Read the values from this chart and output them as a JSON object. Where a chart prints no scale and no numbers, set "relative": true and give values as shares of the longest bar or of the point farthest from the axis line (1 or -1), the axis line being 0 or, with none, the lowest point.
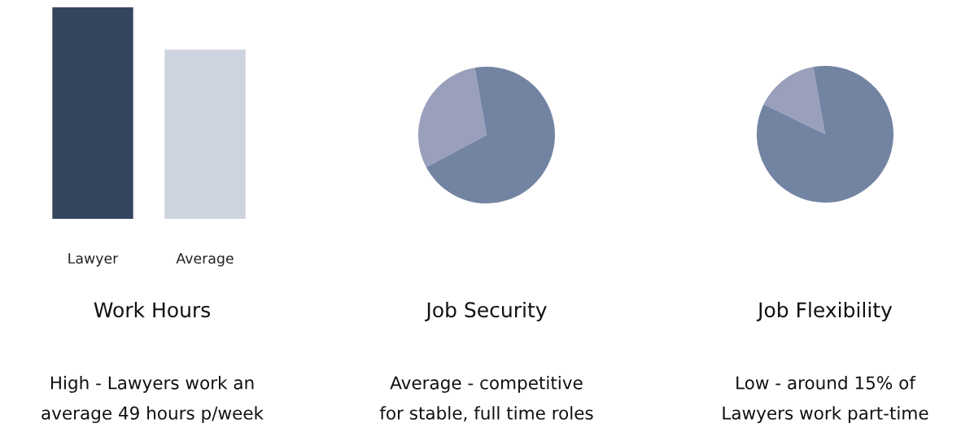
{
  "chart_data": [
    {
      "type": "bar",
      "title": "Work Hours",
      "categories": [
        "Lawyer",
        "Average"
      ],
      "values": [
        1,
        0.8
      ],
      "colors": [
        "#36455e",
        "#cdd3df"
      ],
      "relative": true,
      "annotations": [
        "High - Lawyers work an\naverage 49 hours p/week"
      ]
    },
    {
      "type": "pie",
      "title": "Job Security",
      "categories": [
        null,
        null
      ],
      "values": [
        30,
        70
      ],
      "colors": [
        "#9a9fbb",
        "#7384a3"
      ],
      "annotations": [
        "Average - competitive\nfor stable, full time roles"
      ]
    },
    {
      "type": "pie",
      "title": "Job Flexibility",
      "categories": [
        null,
        null
      ],
      "values": [
        15,
        85
      ],
      "colors": [
        "#9a9fbb",
        "#7384a3"
      ],
      "annotations": [
        "Low - around 15% of\nLawyers work part-time"
      ]
    }
  ]
}
